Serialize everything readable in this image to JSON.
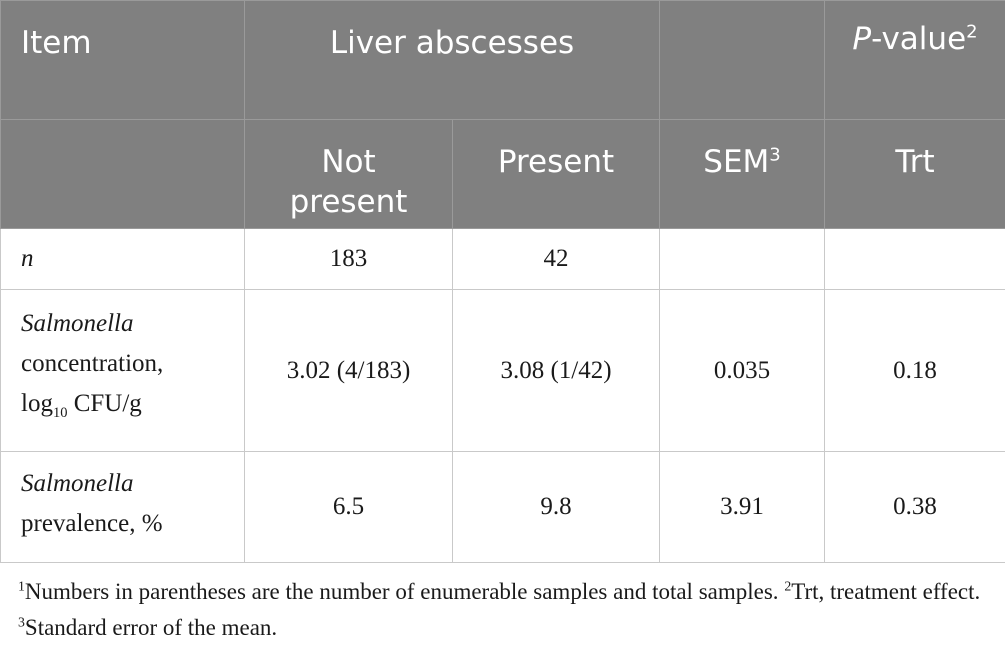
{
  "header": {
    "item": "Item",
    "liver_abscesses": "Liver abscesses",
    "p_value_italic": "P",
    "p_value_rest": "-value",
    "p_value_sup": "2",
    "not_present": "Not present",
    "present": "Present",
    "sem": "SEM",
    "sem_sup": "3",
    "trt": "Trt"
  },
  "rows": [
    {
      "label_italic": "n",
      "not_present": "183",
      "present": "42",
      "sem": "",
      "trt": ""
    },
    {
      "label_italic": "Salmonella",
      "label_line2": "concentration,",
      "label_log": "log",
      "label_log_sub": "10",
      "label_log_rest": " CFU/g",
      "not_present": "3.02 (4/183)",
      "present": "3.08 (1/42)",
      "sem": "0.035",
      "trt": "0.18"
    },
    {
      "label_italic": "Salmonella",
      "label_line2": "prevalence, %",
      "not_present": "6.5",
      "present": "9.8",
      "sem": "3.91",
      "trt": "0.38"
    }
  ],
  "footnotes": {
    "n1_marker": "1",
    "n1_text": "Numbers in parentheses are the number of enumerable samples and total samples. ",
    "n2_marker": "2",
    "n2_text": "Trt, treatment effect. ",
    "n3_marker": "3",
    "n3_text": "Standard error of the mean."
  }
}
